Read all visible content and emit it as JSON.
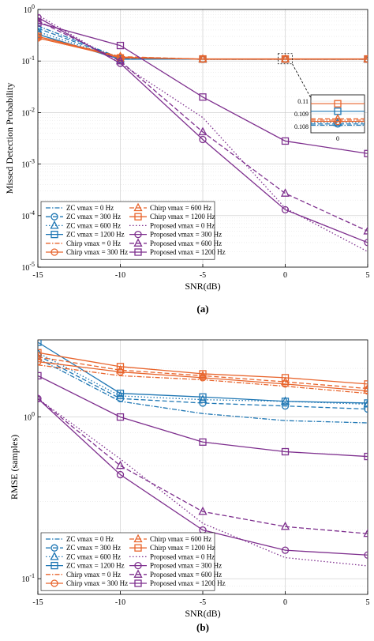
{
  "colors": {
    "zc": "#1f77b4",
    "chirp": "#e8642c",
    "proposed": "#7e2f8e"
  },
  "chart_data": [
    {
      "type": "line",
      "caption": "(a)",
      "xlabel": "SNR(dB)",
      "ylabel": "Missed Detection Probability",
      "xlim": [
        -15,
        5
      ],
      "ylim": [
        1e-05,
        1
      ],
      "yscale": "log",
      "grid": true,
      "legend_position": "bottom-left",
      "x": [
        -15,
        -10,
        -5,
        0,
        5
      ],
      "x_tick_labels": [
        "-15",
        "-10",
        "-5",
        "0",
        "5"
      ],
      "y_tick_labels": [
        "10^0",
        "10^-1",
        "10^-2",
        "10^-3",
        "10^-4",
        "10^-5"
      ],
      "series": [
        {
          "name": "ZC νmax = 0 Hz",
          "family": "zc",
          "marker": "none",
          "dash": "dashdot",
          "values": [
            0.48,
            0.115,
            0.1081,
            0.1081,
            0.1081
          ]
        },
        {
          "name": "ZC νmax = 300 Hz",
          "family": "zc",
          "marker": "circle",
          "dash": "dashed",
          "values": [
            0.43,
            0.112,
            0.1082,
            0.1082,
            0.1082
          ]
        },
        {
          "name": "ZC νmax = 600 Hz",
          "family": "zc",
          "marker": "triangle",
          "dash": "dotted",
          "values": [
            0.37,
            0.11,
            0.1083,
            0.1083,
            0.1083
          ]
        },
        {
          "name": "ZC νmax = 1200 Hz",
          "family": "zc",
          "marker": "square",
          "dash": "solid",
          "values": [
            0.33,
            0.108,
            0.1092,
            0.1092,
            0.1092
          ]
        },
        {
          "name": "Chirp νmax = 0 Hz",
          "family": "chirp",
          "marker": "none",
          "dash": "dashdot",
          "values": [
            0.3,
            0.12,
            0.1085,
            0.1085,
            0.1085
          ]
        },
        {
          "name": "Chirp νmax = 300 Hz",
          "family": "chirp",
          "marker": "circle",
          "dash": "solid",
          "values": [
            0.28,
            0.118,
            0.1084,
            0.1084,
            0.1084
          ]
        },
        {
          "name": "Chirp νmax = 600 Hz",
          "family": "chirp",
          "marker": "triangle",
          "dash": "dashed",
          "values": [
            0.3,
            0.122,
            0.1086,
            0.1086,
            0.1086
          ]
        },
        {
          "name": "Chirp νmax = 1200 Hz",
          "family": "chirp",
          "marker": "square",
          "dash": "solid",
          "values": [
            0.3,
            0.115,
            0.1098,
            0.1098,
            0.1098
          ]
        },
        {
          "name": "Proposed νmax = 0 Hz",
          "family": "proposed",
          "marker": "none",
          "dash": "dotted",
          "values": [
            0.78,
            0.09,
            0.008,
            0.00014,
            2e-05
          ]
        },
        {
          "name": "Proposed νmax = 300 Hz",
          "family": "proposed",
          "marker": "circle",
          "dash": "solid",
          "values": [
            0.7,
            0.09,
            0.003,
            0.00013,
            3e-05
          ]
        },
        {
          "name": "Proposed νmax = 600 Hz",
          "family": "proposed",
          "marker": "triangle",
          "dash": "dashed",
          "values": [
            0.6,
            0.1,
            0.0042,
            0.00027,
            5e-05
          ]
        },
        {
          "name": "Proposed νmax = 1200 Hz",
          "family": "proposed",
          "marker": "square",
          "dash": "solid",
          "values": [
            0.55,
            0.2,
            0.02,
            0.0028,
            0.0016
          ]
        }
      ],
      "inset": {
        "x_tick_labels": [
          "0"
        ],
        "y_tick_labels": [
          "0.11",
          "0.109",
          "0.108"
        ],
        "ylim": [
          0.1075,
          0.1105
        ]
      }
    },
    {
      "type": "line",
      "caption": "(b)",
      "xlabel": "SNR(dB)",
      "ylabel": "RMSE (samples)",
      "xlim": [
        -15,
        5
      ],
      "ylim": [
        0.08,
        3
      ],
      "yscale": "log",
      "grid": true,
      "legend_position": "bottom-left",
      "x": [
        -15,
        -10,
        -5,
        0,
        5
      ],
      "x_tick_labels": [
        "-15",
        "-10",
        "-5",
        "0",
        "5"
      ],
      "y_tick_labels": [
        "10^0",
        "10^-1"
      ],
      "series": [
        {
          "name": "ZC νmax = 0 Hz",
          "family": "zc",
          "marker": "none",
          "dash": "dashdot",
          "values": [
            2.3,
            1.25,
            1.05,
            0.95,
            0.92
          ]
        },
        {
          "name": "ZC νmax = 300 Hz",
          "family": "zc",
          "marker": "circle",
          "dash": "dashed",
          "values": [
            2.4,
            1.3,
            1.22,
            1.17,
            1.12
          ]
        },
        {
          "name": "ZC νmax = 600 Hz",
          "family": "zc",
          "marker": "triangle",
          "dash": "dotted",
          "values": [
            2.5,
            1.35,
            1.28,
            1.25,
            1.2
          ]
        },
        {
          "name": "ZC νmax = 1200 Hz",
          "family": "zc",
          "marker": "square",
          "dash": "solid",
          "values": [
            2.9,
            1.4,
            1.33,
            1.25,
            1.22
          ]
        },
        {
          "name": "Chirp νmax = 0 Hz",
          "family": "chirp",
          "marker": "none",
          "dash": "dashdot",
          "values": [
            2.1,
            1.8,
            1.7,
            1.55,
            1.4
          ]
        },
        {
          "name": "Chirp νmax = 300 Hz",
          "family": "chirp",
          "marker": "circle",
          "dash": "solid",
          "values": [
            2.2,
            1.9,
            1.75,
            1.6,
            1.45
          ]
        },
        {
          "name": "Chirp νmax = 600 Hz",
          "family": "chirp",
          "marker": "triangle",
          "dash": "dashed",
          "values": [
            2.35,
            1.95,
            1.8,
            1.65,
            1.5
          ]
        },
        {
          "name": "Chirp νmax = 1200 Hz",
          "family": "chirp",
          "marker": "square",
          "dash": "solid",
          "values": [
            2.5,
            2.05,
            1.85,
            1.75,
            1.6
          ]
        },
        {
          "name": "Proposed νmax = 0 Hz",
          "family": "proposed",
          "marker": "none",
          "dash": "dotted",
          "values": [
            1.3,
            0.55,
            0.22,
            0.135,
            0.12
          ]
        },
        {
          "name": "Proposed νmax = 300 Hz",
          "family": "proposed",
          "marker": "circle",
          "dash": "solid",
          "values": [
            1.3,
            0.44,
            0.2,
            0.15,
            0.14
          ]
        },
        {
          "name": "Proposed νmax = 600 Hz",
          "family": "proposed",
          "marker": "triangle",
          "dash": "dashed",
          "values": [
            1.3,
            0.5,
            0.26,
            0.21,
            0.19
          ]
        },
        {
          "name": "Proposed νmax = 1200 Hz",
          "family": "proposed",
          "marker": "square",
          "dash": "solid",
          "values": [
            1.8,
            1.0,
            0.7,
            0.61,
            0.57
          ]
        }
      ]
    }
  ]
}
